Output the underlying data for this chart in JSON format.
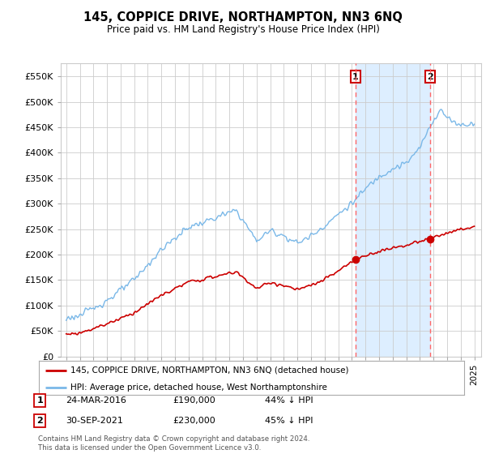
{
  "title": "145, COPPICE DRIVE, NORTHAMPTON, NN3 6NQ",
  "subtitle": "Price paid vs. HM Land Registry's House Price Index (HPI)",
  "legend_line1": "145, COPPICE DRIVE, NORTHAMPTON, NN3 6NQ (detached house)",
  "legend_line2": "HPI: Average price, detached house, West Northamptonshire",
  "table_rows": [
    {
      "num": "1",
      "date": "24-MAR-2016",
      "price": "£190,000",
      "hpi": "44% ↓ HPI"
    },
    {
      "num": "2",
      "date": "30-SEP-2021",
      "price": "£230,000",
      "hpi": "45% ↓ HPI"
    }
  ],
  "footnote1": "Contains HM Land Registry data © Crown copyright and database right 2024.",
  "footnote2": "This data is licensed under the Open Government Licence v3.0.",
  "hpi_color": "#7ab8e8",
  "hpi_fill_color": "#ddeeff",
  "price_color": "#cc0000",
  "vline_color": "#ff6666",
  "ylim": [
    0,
    575000
  ],
  "yticks": [
    0,
    50000,
    100000,
    150000,
    200000,
    250000,
    300000,
    350000,
    400000,
    450000,
    500000,
    550000
  ],
  "price_sale1_year": 2016.25,
  "price_sale2_year": 2021.75,
  "price_sale1_value": 190000,
  "price_sale2_value": 230000,
  "vline1_year": 2016.25,
  "vline2_year": 2021.75
}
